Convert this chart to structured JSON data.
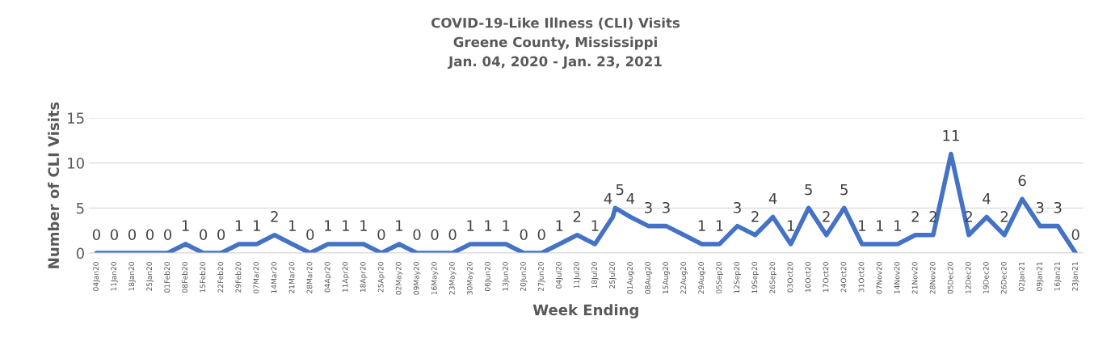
{
  "chart_data": {
    "type": "line",
    "title": "COVID-19-Like Illness (CLI) Visits\nGreene County, Mississippi\nJan. 04, 2020 - Jan. 23, 2021",
    "xlabel": "Week Ending",
    "ylabel": "Number of CLI Visits",
    "x": [
      "2020-01-04",
      "2020-01-11",
      "2020-01-18",
      "2020-01-25",
      "2020-02-01",
      "2020-02-08",
      "2020-02-15",
      "2020-02-22",
      "2020-02-29",
      "2020-03-07",
      "2020-03-14",
      "2020-03-21",
      "2020-03-28",
      "2020-04-04",
      "2020-04-11",
      "2020-04-18",
      "2020-04-25",
      "2020-05-02",
      "2020-05-09",
      "2020-05-16",
      "2020-05-23",
      "2020-05-30",
      "2020-06-06",
      "2020-06-13",
      "2020-06-20",
      "2020-06-27",
      "2020-07-04",
      "2020-07-11",
      "2020-07-18",
      "2020-07-25",
      "2020-07-26",
      "2020-08-01",
      "2020-08-08",
      "2020-08-15",
      "2020-08-22",
      "2020-08-29",
      "2020-09-05",
      "2020-09-12",
      "2020-09-19",
      "2020-09-26",
      "2020-10-03",
      "2020-10-10",
      "2020-10-17",
      "2020-10-24",
      "2020-10-31",
      "2020-11-07",
      "2020-11-14",
      "2020-11-21",
      "2020-11-28",
      "2020-12-05",
      "2020-12-12",
      "2020-12-19",
      "2020-12-26",
      "2021-01-02",
      "2021-01-09",
      "2021-01-16",
      "2021-01-23"
    ],
    "series": [
      {
        "color": "#4472c4",
        "values": [
          0,
          0,
          0,
          0,
          0,
          1,
          0,
          0,
          1,
          1,
          2,
          1,
          0,
          1,
          1,
          1,
          0,
          1,
          0,
          0,
          0,
          1,
          1,
          1,
          0,
          0,
          1,
          2,
          1,
          4,
          5,
          4,
          3,
          3,
          2,
          1,
          1,
          3,
          2,
          4,
          1,
          5,
          2,
          5,
          1,
          1,
          1,
          2,
          2,
          11,
          2,
          4,
          2,
          6,
          3,
          3,
          0
        ],
        "value_labels": [
          "0",
          "0",
          "0",
          "0",
          "0",
          "1",
          "0",
          "0",
          "1",
          "1",
          "2",
          "1",
          "0",
          "1",
          "1",
          "1",
          "0",
          "1",
          "0",
          "0",
          "0",
          "1",
          "1",
          "1",
          "0",
          "0",
          "1",
          "2",
          "1",
          "4",
          "5",
          "4",
          "3",
          "3",
          null,
          "1",
          "1",
          "3",
          "2",
          "4",
          "1",
          "5",
          "2",
          "5",
          "1",
          "1",
          "1",
          "2",
          "2",
          "11",
          "2",
          "4",
          "2",
          "6",
          "3",
          "3",
          "0"
        ]
      }
    ],
    "xlim": [
      "2020-01-01",
      "2021-01-26"
    ],
    "xticks": [
      {
        "value": "2020-01-04",
        "label": "04Jan20"
      },
      {
        "value": "2020-01-11",
        "label": "11Jan20"
      },
      {
        "value": "2020-01-18",
        "label": "18Jan20"
      },
      {
        "value": "2020-01-25",
        "label": "25Jan20"
      },
      {
        "value": "2020-02-01",
        "label": "01Feb20"
      },
      {
        "value": "2020-02-08",
        "label": "08Feb20"
      },
      {
        "value": "2020-02-15",
        "label": "15Feb20"
      },
      {
        "value": "2020-02-22",
        "label": "22Feb20"
      },
      {
        "value": "2020-02-29",
        "label": "29Feb20"
      },
      {
        "value": "2020-03-07",
        "label": "07Mar20"
      },
      {
        "value": "2020-03-14",
        "label": "14Mar20"
      },
      {
        "value": "2020-03-21",
        "label": "21Mar20"
      },
      {
        "value": "2020-03-28",
        "label": "28Mar20"
      },
      {
        "value": "2020-04-04",
        "label": "04Apr20"
      },
      {
        "value": "2020-04-11",
        "label": "11Apr20"
      },
      {
        "value": "2020-04-18",
        "label": "18Apr20"
      },
      {
        "value": "2020-04-25",
        "label": "25Apr20"
      },
      {
        "value": "2020-05-02",
        "label": "02May20"
      },
      {
        "value": "2020-05-09",
        "label": "09May20"
      },
      {
        "value": "2020-05-16",
        "label": "16May20"
      },
      {
        "value": "2020-05-23",
        "label": "23May20"
      },
      {
        "value": "2020-05-30",
        "label": "30May20"
      },
      {
        "value": "2020-06-06",
        "label": "06Jun20"
      },
      {
        "value": "2020-06-13",
        "label": "13Jun20"
      },
      {
        "value": "2020-06-20",
        "label": "20Jun20"
      },
      {
        "value": "2020-06-27",
        "label": "27Jun20"
      },
      {
        "value": "2020-07-04",
        "label": "04Jul20"
      },
      {
        "value": "2020-07-11",
        "label": "11Jul20"
      },
      {
        "value": "2020-07-18",
        "label": "18Jul20"
      },
      {
        "value": "2020-07-25",
        "label": "25Jul20"
      },
      {
        "value": "2020-08-01",
        "label": "01Aug20"
      },
      {
        "value": "2020-08-08",
        "label": "08Aug20"
      },
      {
        "value": "2020-08-15",
        "label": "15Aug20"
      },
      {
        "value": "2020-08-22",
        "label": "22Aug20"
      },
      {
        "value": "2020-08-29",
        "label": "29Aug20"
      },
      {
        "value": "2020-09-05",
        "label": "05Sep20"
      },
      {
        "value": "2020-09-12",
        "label": "12Sep20"
      },
      {
        "value": "2020-09-19",
        "label": "19Sep20"
      },
      {
        "value": "2020-09-26",
        "label": "26Sep20"
      },
      {
        "value": "2020-10-03",
        "label": "03Oct20"
      },
      {
        "value": "2020-10-10",
        "label": "10Oct20"
      },
      {
        "value": "2020-10-17",
        "label": "17Oct20"
      },
      {
        "value": "2020-10-24",
        "label": "24Oct20"
      },
      {
        "value": "2020-10-31",
        "label": "31Oct20"
      },
      {
        "value": "2020-11-07",
        "label": "07Nov20"
      },
      {
        "value": "2020-11-14",
        "label": "14Nov20"
      },
      {
        "value": "2020-11-21",
        "label": "21Nov20"
      },
      {
        "value": "2020-11-28",
        "label": "28Nov20"
      },
      {
        "value": "2020-12-05",
        "label": "05Dec20"
      },
      {
        "value": "2020-12-12",
        "label": "12Dec20"
      },
      {
        "value": "2020-12-19",
        "label": "19Dec20"
      },
      {
        "value": "2020-12-26",
        "label": "26Dec20"
      },
      {
        "value": "2021-01-02",
        "label": "02Jan21"
      },
      {
        "value": "2021-01-09",
        "label": "09Jan21"
      },
      {
        "value": "2021-01-16",
        "label": "16Jan21"
      },
      {
        "value": "2021-01-23",
        "label": "23Jan21"
      }
    ],
    "ylim": [
      0,
      15
    ],
    "yticks": [
      0,
      5,
      10,
      15
    ],
    "grid": "y",
    "line_style": "solid"
  }
}
